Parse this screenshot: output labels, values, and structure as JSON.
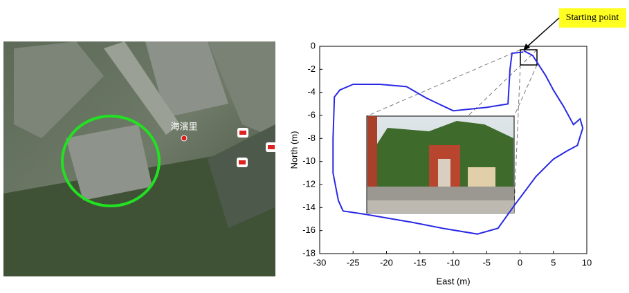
{
  "map": {
    "label": "海濱里"
  },
  "chart_data": {
    "type": "line",
    "x_label": "East (m)",
    "y_label": "North (m)",
    "annotation": "Starting point",
    "color": "#2828e6",
    "x": [
      0.5,
      -1.2,
      -1.5,
      -1.8,
      -5,
      -10,
      -14,
      -17,
      -21,
      -25,
      -27,
      -27.8,
      -28,
      -28,
      -27.2,
      -26.5,
      -23,
      -20,
      -16,
      -11.6,
      -6.4,
      -3.3,
      -0.7,
      2.4,
      5,
      7,
      8.6,
      9.4,
      9,
      8,
      6.5,
      5,
      3.8,
      2.9,
      1.9,
      0.6
    ],
    "values": [
      -0.5,
      -0.6,
      -2,
      -5,
      -5.3,
      -5.6,
      -4.5,
      -3.5,
      -3.3,
      -3.3,
      -3.8,
      -4.4,
      -8,
      -11,
      -13.4,
      -14.3,
      -14.6,
      -14.9,
      -15.3,
      -15.8,
      -16.3,
      -15.8,
      -13.7,
      -11.3,
      -9.8,
      -9.1,
      -8.6,
      -7.1,
      -6.3,
      -6.8,
      -5.2,
      -3.8,
      -2.5,
      -1.7,
      -0.8,
      -0.4
    ],
    "xlim": [
      -30,
      10
    ],
    "ylim": [
      -18,
      0
    ],
    "xticks": [
      -30,
      -25,
      -20,
      -15,
      -10,
      -5,
      0,
      5,
      10
    ],
    "yticks": [
      0,
      -2,
      -4,
      -6,
      -8,
      -10,
      -12,
      -14,
      -16,
      -18
    ]
  }
}
